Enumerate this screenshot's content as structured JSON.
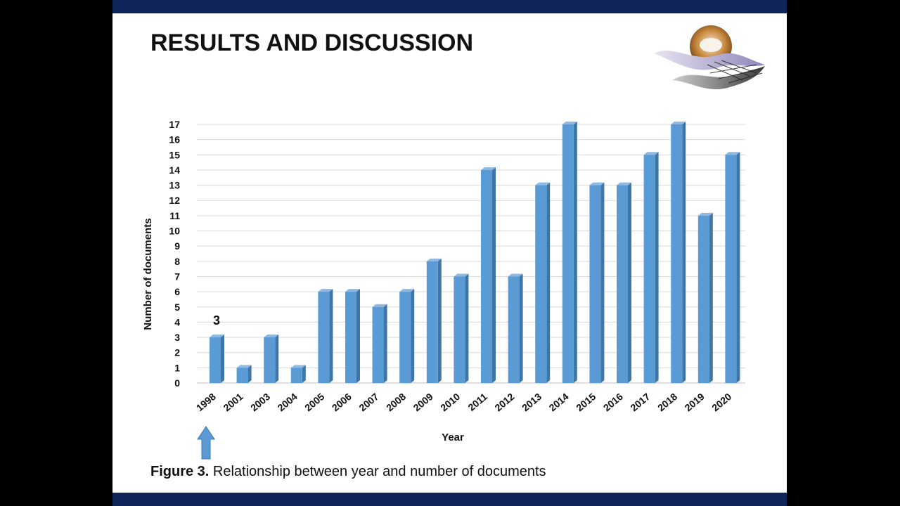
{
  "slide": {
    "title": "RESULTS AND DISCUSSION",
    "caption_number": "Figure 3.",
    "caption_text": " Relationship between year and number of documents",
    "header_bar_color": "#0f2458",
    "footer_bar_color": "#0f2458"
  },
  "chart_data": {
    "type": "bar",
    "xlabel": "Year",
    "ylabel": "Number of documents",
    "ylim": [
      0,
      17
    ],
    "yticks": [
      0,
      1,
      2,
      3,
      4,
      5,
      6,
      7,
      8,
      9,
      10,
      11,
      12,
      13,
      14,
      15,
      16,
      17
    ],
    "grid": true,
    "bar_color": "#5b9bd5",
    "categories": [
      "1998",
      "2001",
      "2003",
      "2004",
      "2005",
      "2006",
      "2007",
      "2008",
      "2009",
      "2010",
      "2011",
      "2012",
      "2013",
      "2014",
      "2015",
      "2016",
      "2017",
      "2018",
      "2019",
      "2020"
    ],
    "values": [
      3,
      1,
      3,
      1,
      6,
      6,
      5,
      6,
      8,
      7,
      14,
      7,
      13,
      17,
      13,
      13,
      15,
      17,
      11,
      15
    ],
    "annotations": [
      {
        "category": "1998",
        "text": "3"
      }
    ],
    "arrow": {
      "category": "1998",
      "direction": "up",
      "color": "#5b9bd5"
    }
  }
}
